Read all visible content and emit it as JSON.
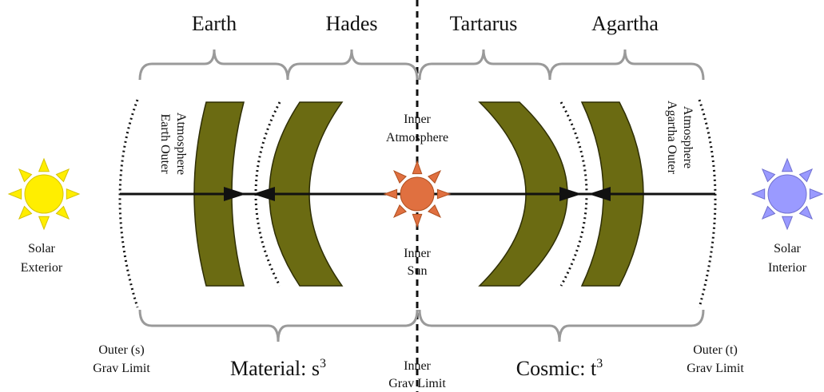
{
  "regions": [
    "Earth",
    "Hades",
    "Tartarus",
    "Agartha"
  ],
  "earth_outer_atmosphere": [
    "Earth Outer",
    "Atmosphere"
  ],
  "agartha_outer_atmosphere": [
    "Agartha Outer",
    "Atmosphere"
  ],
  "inner_atmosphere": [
    "Inner",
    "Atmosphere"
  ],
  "inner_sun": [
    "Inner",
    "Sun"
  ],
  "solar_exterior": [
    "Solar",
    "Exterior"
  ],
  "solar_interior": [
    "Solar",
    "Interior"
  ],
  "outer_s_grav_limit": [
    "Outer (s)",
    "Grav Limit"
  ],
  "inner_grav_limit": [
    "Inner",
    "Grav Limit"
  ],
  "outer_t_grav_limit": [
    "Outer (t)",
    "Grav Limit"
  ],
  "material": {
    "text": "Material: s",
    "sup": "3"
  },
  "cosmic": {
    "text": "Cosmic: t",
    "sup": "3"
  }
}
